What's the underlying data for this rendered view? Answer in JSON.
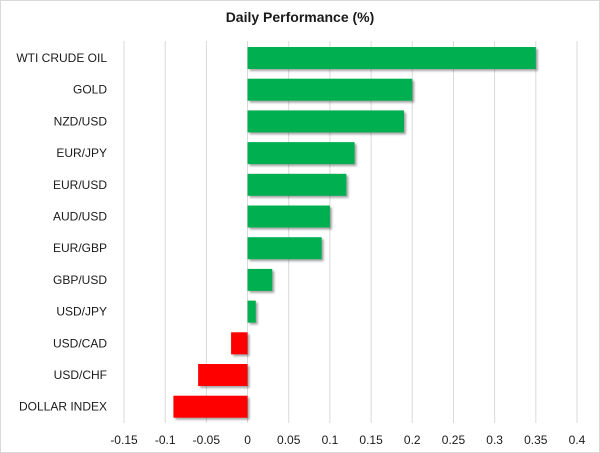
{
  "chart_data": {
    "type": "bar",
    "orientation": "horizontal",
    "title": "Daily Performance (%)",
    "xlabel": "",
    "ylabel": "",
    "categories": [
      "WTI CRUDE OIL",
      "GOLD",
      "NZD/USD",
      "EUR/JPY",
      "EUR/USD",
      "AUD/USD",
      "EUR/GBP",
      "GBP/USD",
      "USD/JPY",
      "USD/CAD",
      "USD/CHF",
      "DOLLAR INDEX"
    ],
    "values": [
      0.35,
      0.2,
      0.19,
      0.13,
      0.12,
      0.1,
      0.09,
      0.03,
      0.01,
      -0.02,
      -0.06,
      -0.09
    ],
    "xlim": [
      -0.15,
      0.4
    ],
    "ticks": [
      "-0.15",
      "-0.1",
      "-0.05",
      "0",
      "0.05",
      "0.1",
      "0.15",
      "0.2",
      "0.25",
      "0.3",
      "0.35",
      "0.4"
    ],
    "grid": "vertical",
    "legend": "none",
    "colors": {
      "positive": "#00b050",
      "negative": "#ff0000",
      "grid": "#d9d9d9"
    }
  }
}
